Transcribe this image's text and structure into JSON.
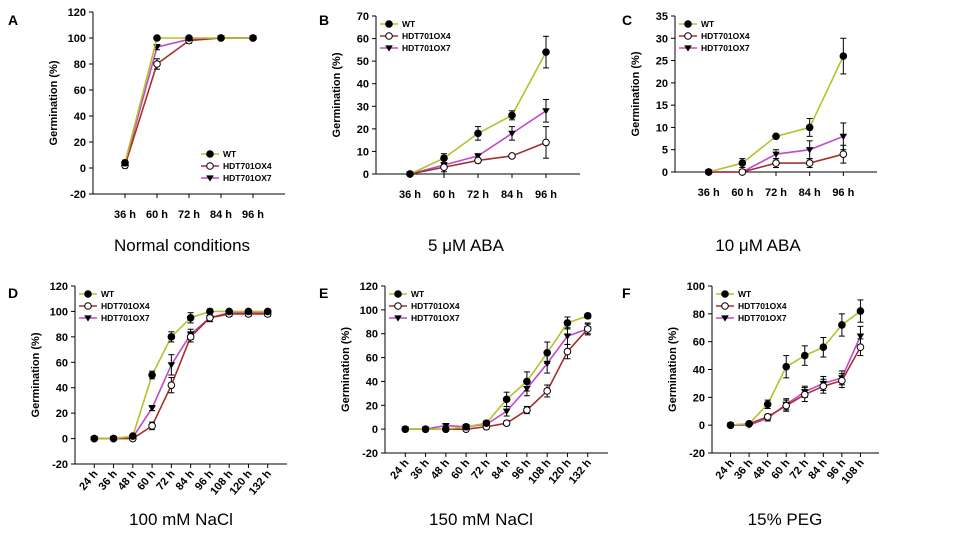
{
  "series_colors": {
    "WT": "#b6c12a",
    "HDT701OX4": "#a5302b",
    "HDT701OX7": "#c04ac9"
  },
  "chart_data": [
    {
      "letter": "A",
      "type": "line",
      "caption": "Normal conditions",
      "ylabel": "Germination (%)",
      "ylim": [
        -20,
        120
      ],
      "ystep": 20,
      "legend_position": "bottom-right",
      "categories": [
        "36 h",
        "60 h",
        "72 h",
        "84 h",
        "96 h"
      ],
      "series": [
        {
          "name": "WT",
          "marker": "filled-circle",
          "values": [
            4,
            100,
            100,
            100,
            100
          ],
          "errors": [
            2,
            0,
            0,
            0,
            0
          ]
        },
        {
          "name": "HDT701OX4",
          "marker": "open-circle",
          "values": [
            2,
            80,
            98,
            100,
            100
          ],
          "errors": [
            2,
            4,
            2,
            0,
            0
          ]
        },
        {
          "name": "HDT701OX7",
          "marker": "triangle-down",
          "values": [
            3,
            93,
            99,
            100,
            100
          ],
          "errors": [
            2,
            2,
            1,
            0,
            0
          ]
        }
      ]
    },
    {
      "letter": "B",
      "type": "line",
      "caption": "5 μM ABA",
      "ylabel": "Germination (%)",
      "ylim": [
        0,
        70
      ],
      "ystep": 10,
      "legend_position": "top-left",
      "categories": [
        "36 h",
        "60 h",
        "72 h",
        "84 h",
        "96 h"
      ],
      "series": [
        {
          "name": "WT",
          "marker": "filled-circle",
          "values": [
            0,
            7,
            18,
            26,
            54
          ],
          "errors": [
            0,
            2,
            3,
            2,
            7
          ]
        },
        {
          "name": "HDT701OX4",
          "marker": "open-circle",
          "values": [
            0,
            3,
            6,
            8,
            14
          ],
          "errors": [
            0,
            2,
            1,
            0,
            7
          ]
        },
        {
          "name": "HDT701OX7",
          "marker": "triangle-down",
          "values": [
            0,
            4,
            8,
            18,
            28
          ],
          "errors": [
            0,
            4,
            1,
            3,
            5
          ]
        }
      ]
    },
    {
      "letter": "C",
      "type": "line",
      "caption": "10 μM ABA",
      "ylabel": "Germination (%)",
      "ylim": [
        0,
        35
      ],
      "ystep": 5,
      "legend_position": "top-left",
      "categories": [
        "36 h",
        "60 h",
        "72 h",
        "84 h",
        "96 h"
      ],
      "series": [
        {
          "name": "WT",
          "marker": "filled-circle",
          "values": [
            0,
            2,
            8,
            10,
            26
          ],
          "errors": [
            0,
            1,
            0,
            2,
            4
          ]
        },
        {
          "name": "HDT701OX4",
          "marker": "open-circle",
          "values": [
            0,
            0,
            2,
            2,
            4
          ],
          "errors": [
            0,
            0,
            1,
            1,
            2
          ]
        },
        {
          "name": "HDT701OX7",
          "marker": "triangle-down",
          "values": [
            0,
            0,
            4,
            5,
            8
          ],
          "errors": [
            0,
            0,
            1,
            2,
            3
          ]
        }
      ]
    },
    {
      "letter": "D",
      "type": "line",
      "caption": "100 mM NaCl",
      "ylabel": "Germination (%)",
      "ylim": [
        -20,
        120
      ],
      "ystep": 20,
      "legend_position": "top-left",
      "categories": [
        "24 h",
        "36 h",
        "48 h",
        "60 h",
        "72 h",
        "84 h",
        "96 h",
        "108 h",
        "120 h",
        "132 h"
      ],
      "series": [
        {
          "name": "WT",
          "marker": "filled-circle",
          "values": [
            0,
            0,
            2,
            50,
            80,
            95,
            100,
            100,
            100,
            100
          ],
          "errors": [
            0,
            0,
            1,
            3,
            4,
            4,
            2,
            0,
            0,
            0
          ]
        },
        {
          "name": "HDT701OX4",
          "marker": "open-circle",
          "values": [
            0,
            0,
            0,
            10,
            42,
            80,
            95,
            98,
            98,
            98
          ],
          "errors": [
            0,
            0,
            1,
            3,
            6,
            4,
            3,
            2,
            2,
            2
          ]
        },
        {
          "name": "HDT701OX7",
          "marker": "triangle-down",
          "values": [
            0,
            0,
            1,
            24,
            58,
            82,
            95,
            99,
            99,
            99
          ],
          "errors": [
            0,
            0,
            1,
            2,
            8,
            4,
            3,
            2,
            2,
            2
          ]
        }
      ]
    },
    {
      "letter": "E",
      "type": "line",
      "caption": "150 mM NaCl",
      "ylabel": "Germination (%)",
      "ylim": [
        -20,
        120
      ],
      "ystep": 20,
      "legend_position": "top-left",
      "categories": [
        "24 h",
        "36 h",
        "48 h",
        "60 h",
        "72 h",
        "84 h",
        "96 h",
        "108 h",
        "120 h",
        "132 h"
      ],
      "series": [
        {
          "name": "WT",
          "marker": "filled-circle",
          "values": [
            0,
            0,
            0,
            2,
            5,
            25,
            40,
            64,
            89,
            95
          ],
          "errors": [
            0,
            0,
            0,
            2,
            2,
            6,
            8,
            9,
            5,
            2
          ]
        },
        {
          "name": "HDT701OX4",
          "marker": "open-circle",
          "values": [
            0,
            0,
            0,
            0,
            2,
            5,
            16,
            32,
            65,
            84
          ],
          "errors": [
            0,
            0,
            0,
            1,
            2,
            2,
            3,
            5,
            6,
            4
          ]
        },
        {
          "name": "HDT701OX7",
          "marker": "triangle-down",
          "values": [
            0,
            0,
            3,
            2,
            4,
            15,
            34,
            55,
            78,
            84
          ],
          "errors": [
            0,
            0,
            1,
            1,
            2,
            4,
            6,
            8,
            7,
            5
          ]
        }
      ]
    },
    {
      "letter": "F",
      "type": "line",
      "caption": "15% PEG",
      "ylabel": "Germination (%)",
      "ylim": [
        -20,
        100
      ],
      "ystep": 20,
      "legend_position": "top-left",
      "categories": [
        "24 h",
        "36 h",
        "48 h",
        "60 h",
        "72 h",
        "84 h",
        "96 h",
        "108 h"
      ],
      "series": [
        {
          "name": "WT",
          "marker": "filled-circle",
          "values": [
            0,
            1,
            15,
            42,
            50,
            56,
            72,
            82
          ],
          "errors": [
            0,
            0,
            3,
            8,
            7,
            7,
            8,
            8
          ]
        },
        {
          "name": "HDT701OX4",
          "marker": "open-circle",
          "values": [
            0,
            1,
            6,
            14,
            22,
            28,
            32,
            56
          ],
          "errors": [
            0,
            0,
            2,
            4,
            5,
            5,
            5,
            6
          ]
        },
        {
          "name": "HDT701OX7",
          "marker": "triangle-down",
          "values": [
            0,
            0,
            5,
            15,
            24,
            30,
            34,
            64
          ],
          "errors": [
            0,
            0,
            2,
            4,
            4,
            5,
            5,
            7
          ]
        }
      ]
    }
  ]
}
